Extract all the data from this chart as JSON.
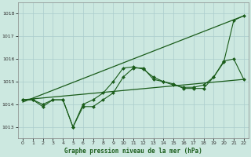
{
  "title": "Graphe pression niveau de la mer (hPa)",
  "bg_color": "#cce8e0",
  "grid_color": "#aacccc",
  "line_color": "#1a5c1a",
  "xlim": [
    -0.5,
    22.5
  ],
  "ylim": [
    1012.5,
    1018.5
  ],
  "yticks": [
    1013,
    1014,
    1015,
    1016,
    1017,
    1018
  ],
  "xticks": [
    0,
    1,
    2,
    3,
    4,
    5,
    6,
    7,
    8,
    9,
    10,
    11,
    12,
    13,
    14,
    15,
    16,
    17,
    18,
    19,
    20,
    21,
    22
  ],
  "series": [
    {
      "x": [
        0,
        22
      ],
      "y": [
        1014.1,
        1017.9
      ],
      "marker": "none",
      "markersize": 0,
      "linewidth": 0.9
    },
    {
      "x": [
        0,
        22
      ],
      "y": [
        1014.2,
        1015.1
      ],
      "marker": "none",
      "markersize": 0,
      "linewidth": 0.9
    },
    {
      "x": [
        0,
        1,
        2,
        3,
        4,
        5,
        6,
        7,
        8,
        9,
        10,
        11,
        12,
        13,
        14,
        15,
        16,
        17,
        18,
        19,
        20,
        21,
        22
      ],
      "y": [
        1014.2,
        1014.2,
        1013.9,
        1014.2,
        1014.2,
        1013.0,
        1013.9,
        1013.9,
        1014.2,
        1014.5,
        1015.2,
        1015.6,
        1015.6,
        1015.1,
        1015.0,
        1014.9,
        1014.7,
        1014.7,
        1014.7,
        1015.2,
        1015.9,
        1016.0,
        1015.1
      ],
      "marker": "D",
      "markersize": 2.0,
      "linewidth": 0.8
    },
    {
      "x": [
        0,
        1,
        2,
        3,
        4,
        5,
        6,
        7,
        8,
        9,
        10,
        11,
        12,
        13,
        14,
        15,
        16,
        17,
        18,
        19,
        20,
        21,
        22
      ],
      "y": [
        1014.2,
        1014.2,
        1014.0,
        1014.2,
        1014.2,
        1013.0,
        1014.0,
        1014.2,
        1014.5,
        1015.0,
        1015.6,
        1015.65,
        1015.55,
        1015.2,
        1015.0,
        1014.85,
        1014.75,
        1014.75,
        1014.85,
        1015.2,
        1015.85,
        1017.7,
        1017.9
      ],
      "marker": "D",
      "markersize": 2.0,
      "linewidth": 0.8
    }
  ]
}
